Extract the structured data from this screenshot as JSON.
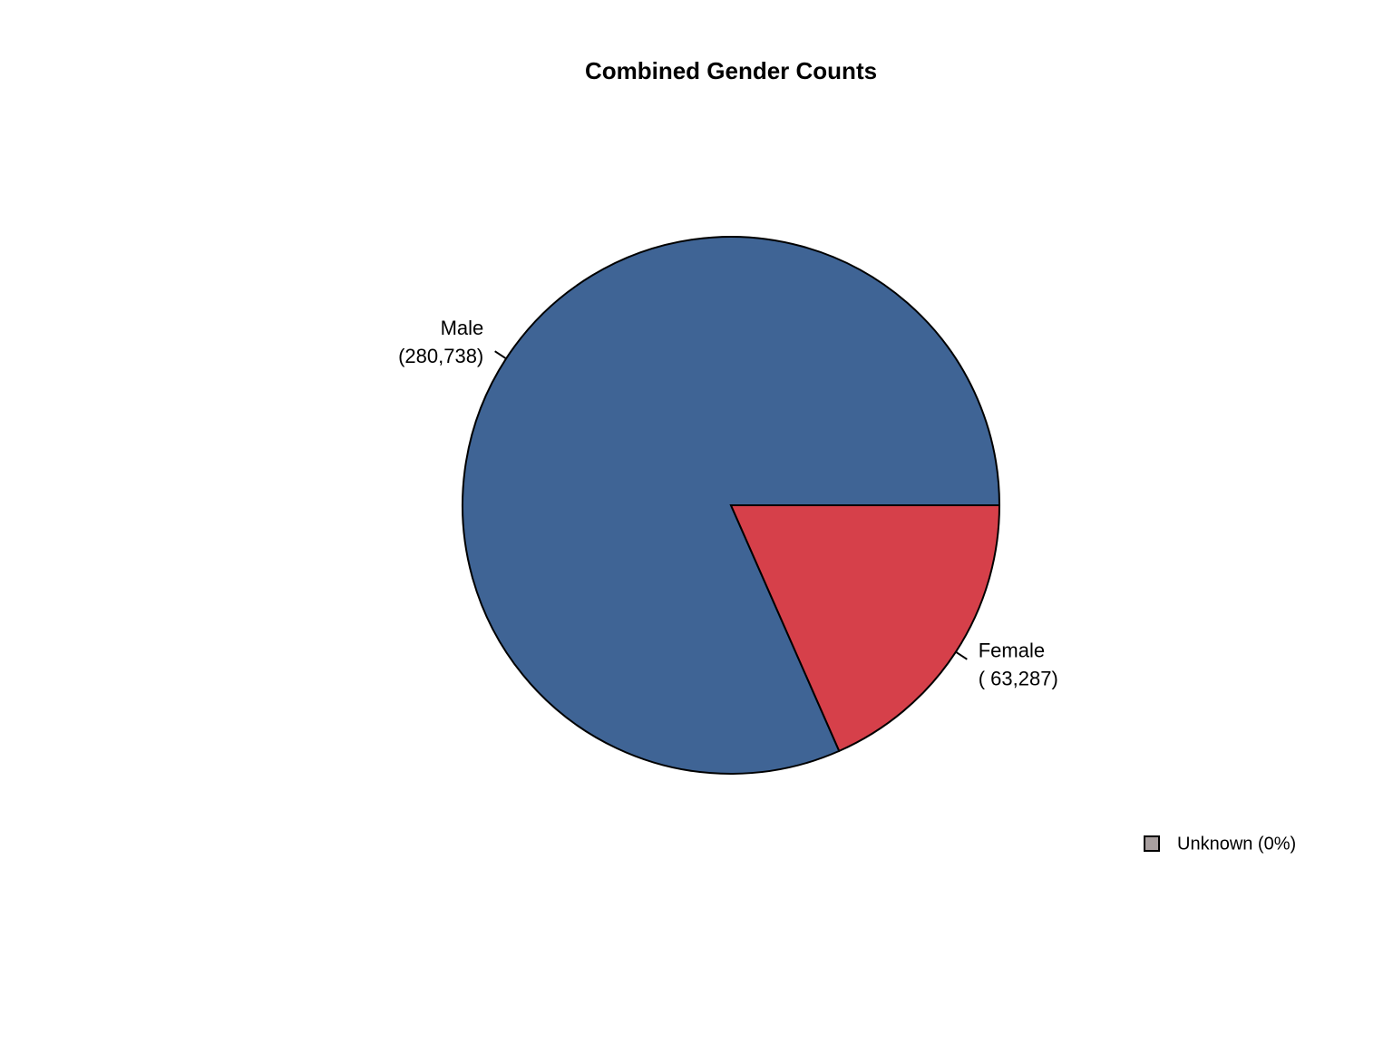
{
  "chart_data": {
    "type": "pie",
    "title": "Combined Gender Counts",
    "categories": [
      "Male",
      "Female"
    ],
    "values": [
      280738,
      63287
    ],
    "value_labels": [
      "(280,738)",
      "( 63,287)"
    ],
    "colors": [
      "#3f6495",
      "#d6404a"
    ],
    "legend": {
      "label": "Unknown (0%)",
      "color": "#a89f9f"
    },
    "legend_position": "bottom-right"
  }
}
